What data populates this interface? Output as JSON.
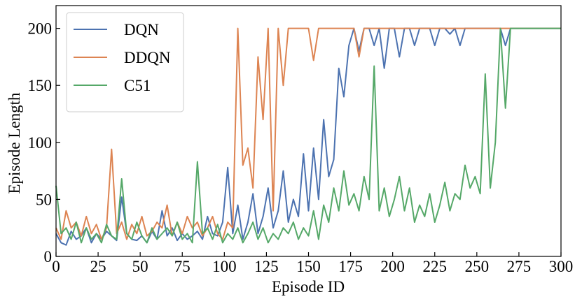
{
  "chart_data": {
    "type": "line",
    "xlabel": "Episode ID",
    "ylabel": "Episode Length",
    "xlim": [
      0,
      300
    ],
    "ylim": [
      0,
      220
    ],
    "xticks": [
      0,
      25,
      50,
      75,
      100,
      125,
      150,
      175,
      200,
      225,
      250,
      275,
      300
    ],
    "yticks": [
      0,
      50,
      100,
      150,
      200
    ],
    "legend": "upper left",
    "x": [
      0,
      3,
      6,
      9,
      12,
      15,
      18,
      21,
      24,
      27,
      30,
      33,
      36,
      39,
      42,
      45,
      48,
      51,
      54,
      57,
      60,
      63,
      66,
      69,
      72,
      75,
      78,
      81,
      84,
      87,
      90,
      93,
      96,
      99,
      102,
      105,
      108,
      111,
      114,
      117,
      120,
      123,
      126,
      129,
      132,
      135,
      138,
      141,
      144,
      147,
      150,
      153,
      156,
      159,
      162,
      165,
      168,
      171,
      174,
      177,
      180,
      183,
      186,
      189,
      192,
      195,
      198,
      201,
      204,
      207,
      210,
      213,
      216,
      219,
      222,
      225,
      228,
      231,
      234,
      237,
      240,
      243,
      246,
      249,
      252,
      255,
      258,
      261,
      264,
      267,
      270,
      273,
      276,
      279,
      282,
      285,
      288,
      291,
      294,
      297,
      300
    ],
    "series": [
      {
        "name": "DQN",
        "color": "#4c72b0",
        "values": [
          20,
          12,
          10,
          22,
          15,
          18,
          25,
          12,
          20,
          15,
          22,
          18,
          14,
          52,
          20,
          15,
          14,
          18,
          12,
          22,
          15,
          40,
          18,
          25,
          14,
          20,
          15,
          18,
          22,
          15,
          35,
          20,
          18,
          30,
          78,
          20,
          45,
          15,
          30,
          55,
          20,
          35,
          60,
          25,
          40,
          75,
          30,
          50,
          35,
          90,
          40,
          95,
          50,
          120,
          70,
          85,
          165,
          140,
          185,
          200,
          180,
          200,
          200,
          185,
          200,
          165,
          200,
          200,
          175,
          200,
          200,
          185,
          200,
          200,
          200,
          185,
          200,
          200,
          195,
          200,
          185,
          200,
          200,
          200,
          200,
          200,
          200,
          200,
          200,
          185,
          200,
          200,
          200,
          200,
          200,
          200,
          200,
          200,
          200,
          200,
          200
        ]
      },
      {
        "name": "DDQN",
        "color": "#dd8452",
        "values": [
          25,
          15,
          40,
          25,
          30,
          18,
          35,
          20,
          28,
          15,
          25,
          94,
          20,
          30,
          15,
          28,
          20,
          35,
          18,
          22,
          30,
          25,
          45,
          18,
          30,
          20,
          35,
          25,
          30,
          18,
          25,
          35,
          20,
          15,
          30,
          25,
          200,
          80,
          95,
          60,
          175,
          120,
          200,
          40,
          200,
          150,
          200,
          200,
          200,
          200,
          200,
          172,
          200,
          200,
          200,
          200,
          200,
          200,
          200,
          200,
          175,
          200,
          200,
          200,
          200,
          200,
          200,
          200,
          200,
          200,
          200,
          200,
          200,
          200,
          200,
          200,
          200,
          200,
          200,
          200,
          200,
          200,
          200,
          200,
          200,
          200,
          200,
          200,
          200,
          200,
          200,
          200,
          200,
          200,
          200,
          200,
          200,
          200,
          200,
          200,
          200
        ]
      },
      {
        "name": "C51",
        "color": "#55a868",
        "values": [
          62,
          20,
          25,
          15,
          30,
          12,
          25,
          15,
          20,
          12,
          28,
          18,
          15,
          68,
          20,
          15,
          30,
          18,
          12,
          25,
          15,
          20,
          25,
          18,
          30,
          15,
          20,
          12,
          83,
          20,
          25,
          15,
          28,
          12,
          20,
          15,
          25,
          12,
          20,
          30,
          15,
          25,
          12,
          20,
          15,
          25,
          20,
          30,
          15,
          25,
          18,
          40,
          15,
          45,
          30,
          60,
          40,
          75,
          45,
          55,
          40,
          70,
          50,
          167,
          40,
          60,
          35,
          50,
          70,
          40,
          60,
          30,
          45,
          35,
          55,
          30,
          45,
          65,
          40,
          55,
          50,
          80,
          60,
          70,
          55,
          160,
          60,
          100,
          200,
          130,
          200,
          200,
          200,
          200,
          200,
          200,
          200,
          200,
          200,
          200,
          200
        ]
      }
    ]
  }
}
